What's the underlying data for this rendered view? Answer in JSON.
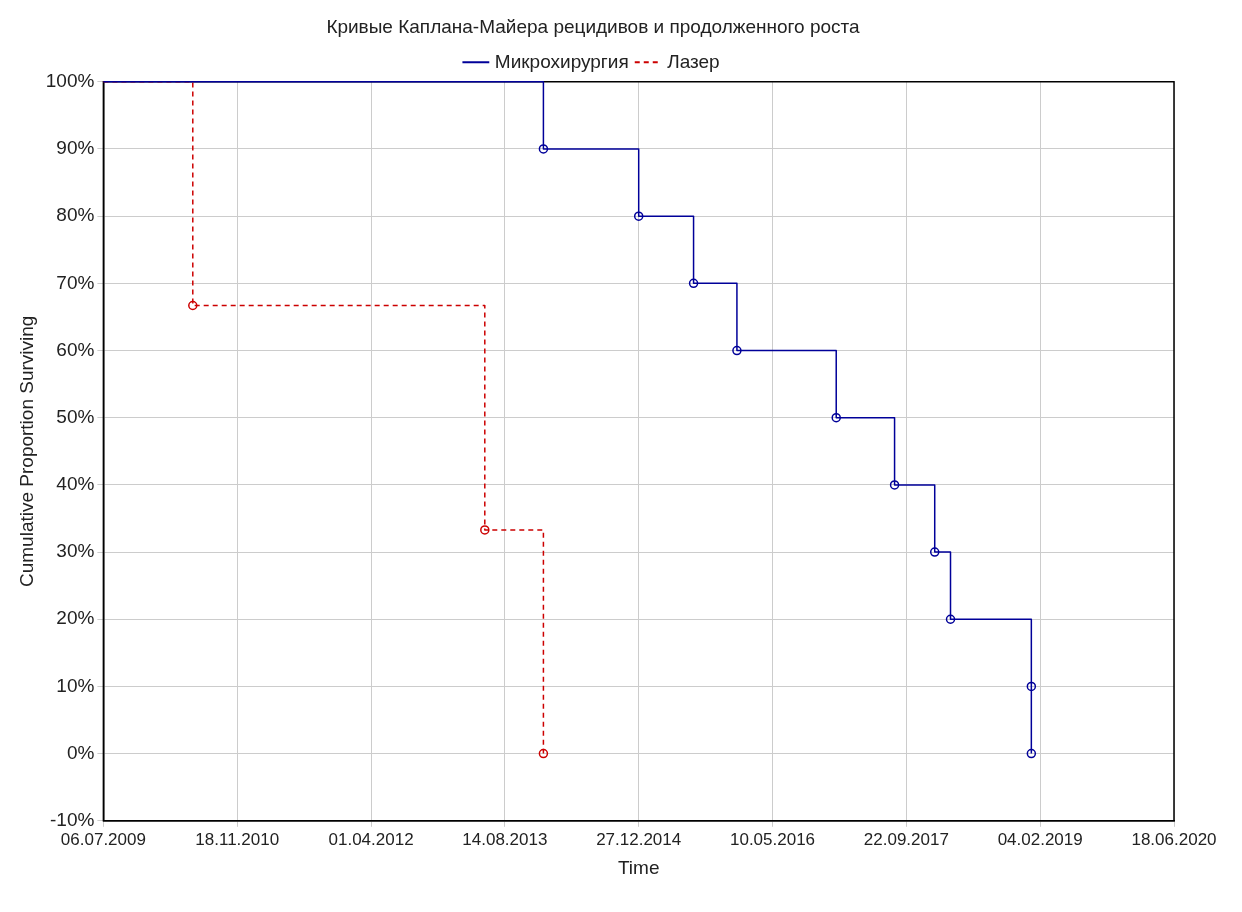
{
  "chart_data": {
    "type": "step",
    "title": "Кривые Каплана-Майера рецидивов и продолженного роста",
    "xlabel": "Time",
    "ylabel": "Cumulative Proportion Surviving",
    "legend": "top",
    "grid": true,
    "marker": "circle",
    "xlim": [
      "2009-07-06",
      "2020-06-18"
    ],
    "xticks": [
      {
        "value": "2009-07-06",
        "label": "06.07.2009"
      },
      {
        "value": "2010-11-18",
        "label": "18.11.2010"
      },
      {
        "value": "2012-04-01",
        "label": "01.04.2012"
      },
      {
        "value": "2013-08-14",
        "label": "14.08.2013"
      },
      {
        "value": "2014-12-27",
        "label": "27.12.2014"
      },
      {
        "value": "2016-05-10",
        "label": "10.05.2016"
      },
      {
        "value": "2017-09-22",
        "label": "22.09.2017"
      },
      {
        "value": "2019-02-04",
        "label": "04.02.2019"
      },
      {
        "value": "2020-06-18",
        "label": "18.06.2020"
      }
    ],
    "ylim": [
      -10,
      100
    ],
    "yticks": [
      {
        "value": -10,
        "label": "-10%"
      },
      {
        "value": 0,
        "label": "0%"
      },
      {
        "value": 10,
        "label": "10%"
      },
      {
        "value": 20,
        "label": "20%"
      },
      {
        "value": 30,
        "label": "30%"
      },
      {
        "value": 40,
        "label": "40%"
      },
      {
        "value": 50,
        "label": "50%"
      },
      {
        "value": 60,
        "label": "60%"
      },
      {
        "value": 70,
        "label": "70%"
      },
      {
        "value": 80,
        "label": "80%"
      },
      {
        "value": 90,
        "label": "90%"
      },
      {
        "value": 100,
        "label": "100%"
      }
    ],
    "series": [
      {
        "name": "Микрохирургия",
        "color": "#000099",
        "line_style": "solid",
        "x": [
          "2009-07-06",
          "2014-01-05",
          "2014-12-27",
          "2015-07-20",
          "2015-12-29",
          "2017-01-03",
          "2017-08-09",
          "2018-01-06",
          "2018-03-06",
          "2019-01-02",
          "2019-01-02"
        ],
        "values": [
          100,
          90,
          80,
          70,
          60,
          50,
          40,
          30,
          20,
          10,
          0
        ]
      },
      {
        "name": "Лазер",
        "color": "#cc0000",
        "line_style": "dashed",
        "x": [
          "2009-07-06",
          "2010-06-05",
          "2013-05-31",
          "2014-01-05"
        ],
        "values": [
          100,
          66.7,
          33.3,
          0
        ]
      }
    ]
  }
}
